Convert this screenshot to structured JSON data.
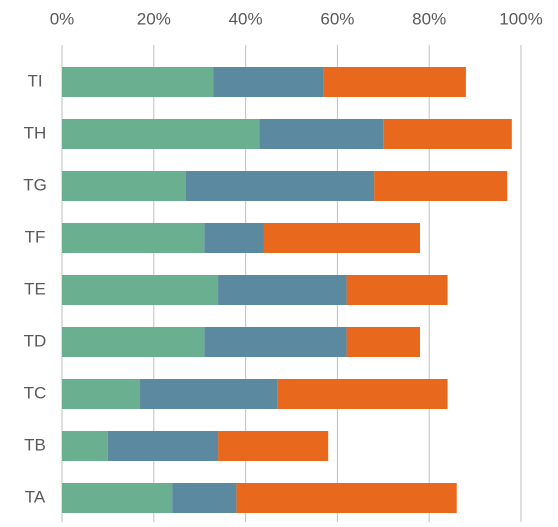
{
  "chart_data": {
    "type": "stacked-bar-horizontal",
    "categories": [
      "TA",
      "TB",
      "TC",
      "TD",
      "TE",
      "TF",
      "TG",
      "TH",
      "TI"
    ],
    "series": [
      {
        "color": "#6aaf8f",
        "values": [
          24,
          10,
          17,
          31,
          34,
          31,
          27,
          43,
          33
        ]
      },
      {
        "color": "#5b89a0",
        "values": [
          14,
          24,
          30,
          31,
          28,
          13,
          41,
          27,
          24
        ]
      },
      {
        "color": "#e8681d",
        "values": [
          48,
          24,
          37,
          16,
          22,
          34,
          29,
          28,
          31
        ]
      }
    ],
    "xlim": [
      0,
      100
    ],
    "xticks": [
      {
        "value": 0,
        "label": "0%"
      },
      {
        "value": 20,
        "label": "20%"
      },
      {
        "value": 40,
        "label": "40%"
      },
      {
        "value": 60,
        "label": "60%"
      },
      {
        "value": 80,
        "label": "80%"
      },
      {
        "value": 100,
        "label": "100%"
      }
    ],
    "grid": true
  }
}
